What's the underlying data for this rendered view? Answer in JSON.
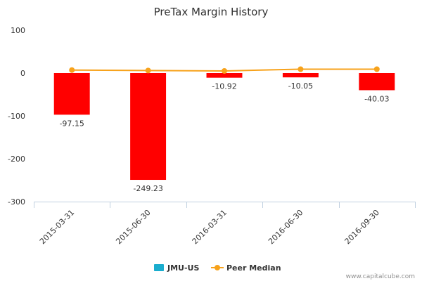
{
  "chart_data": {
    "type": "bar",
    "title": "PreTax Margin History",
    "categories": [
      "2015-03-31",
      "2015-06-30",
      "2016-03-31",
      "2016-06-30",
      "2016-09-30"
    ],
    "series": [
      {
        "name": "JMU-US",
        "type": "bar",
        "values": [
          -97.15,
          -249.23,
          -10.92,
          -10.05,
          -40.03
        ],
        "labels": [
          "-97.15",
          "-249.23",
          "-10.92",
          "-10.05",
          "-40.03"
        ],
        "color": "#ff0000",
        "legend_color": "#1aadce"
      },
      {
        "name": "Peer Median",
        "type": "line",
        "values": [
          7,
          6,
          5,
          9,
          9
        ],
        "color": "#f7a21b"
      }
    ],
    "yticks": [
      100,
      0,
      -100,
      -200,
      -300
    ],
    "ylim": [
      -300,
      100
    ],
    "xlabel": "",
    "ylabel": "",
    "grid": false,
    "legend_position": "bottom-center"
  },
  "credit": "www.capitalcube.com"
}
